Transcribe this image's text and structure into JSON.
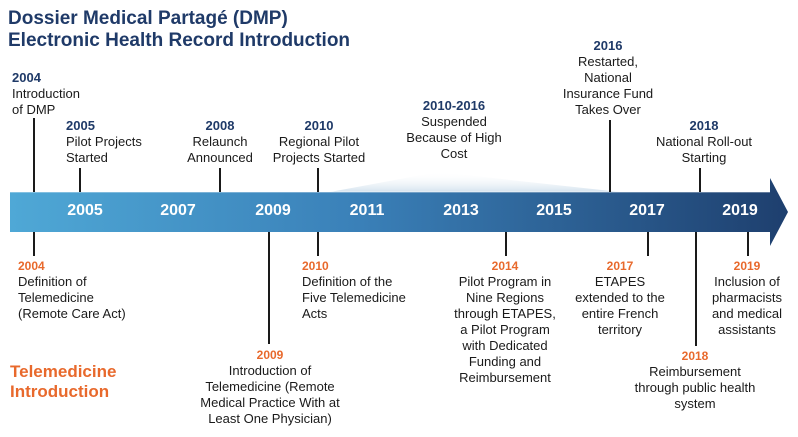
{
  "title_line1": "Dossier Medical Partagé (DMP)",
  "title_line2": "Electronic Health Record  Introduction",
  "side_title_line1": "Telemedicine",
  "side_title_line2": "Introduction",
  "colors": {
    "navy": "#1f3a68",
    "orange": "#e8692c",
    "arrow_start": "#4fa8d6",
    "arrow_end": "#1e3f6e"
  },
  "axis_years": [
    "2005",
    "2007",
    "2009",
    "2011",
    "2013",
    "2015",
    "2017",
    "2019"
  ],
  "dmp_events": [
    {
      "year": "2004",
      "lines": [
        "Introduction",
        "of DMP"
      ]
    },
    {
      "year": "2005",
      "lines": [
        "Pilot Projects",
        "Started"
      ]
    },
    {
      "year": "2008",
      "lines": [
        "Relaunch",
        "Announced"
      ]
    },
    {
      "year": "2010",
      "lines": [
        "Regional Pilot",
        "Projects Started"
      ]
    },
    {
      "year": "2010-2016",
      "lines": [
        "Suspended",
        "Because of High",
        "Cost"
      ]
    },
    {
      "year": "2016",
      "lines": [
        "Restarted,",
        "National",
        "Insurance Fund",
        "Takes Over"
      ]
    },
    {
      "year": "2018",
      "lines": [
        "National Roll-out",
        "Starting"
      ]
    }
  ],
  "telemedicine_events": [
    {
      "year": "2004",
      "lines": [
        "Definition of",
        "Telemedicine",
        "(Remote Care Act)"
      ]
    },
    {
      "year": "2009",
      "lines": [
        "Introduction of",
        "Telemedicine (Remote",
        "Medical Practice With at",
        "Least One Physician)"
      ]
    },
    {
      "year": "2010",
      "lines": [
        "Definition of the",
        "Five Telemedicine",
        "Acts"
      ]
    },
    {
      "year": "2014",
      "lines": [
        "Pilot Program in",
        "Nine Regions",
        "through ETAPES,",
        "a Pilot Program",
        "with Dedicated",
        "Funding and",
        "Reimbursement"
      ]
    },
    {
      "year": "2017",
      "lines": [
        "ETAPES",
        "extended to the",
        "entire French",
        "territory"
      ]
    },
    {
      "year": "2018",
      "lines": [
        "Reimbursement",
        "through public health",
        "system"
      ]
    },
    {
      "year": "2019",
      "lines": [
        "Inclusion of",
        "pharmacists",
        "and medical",
        "assistants"
      ]
    }
  ]
}
